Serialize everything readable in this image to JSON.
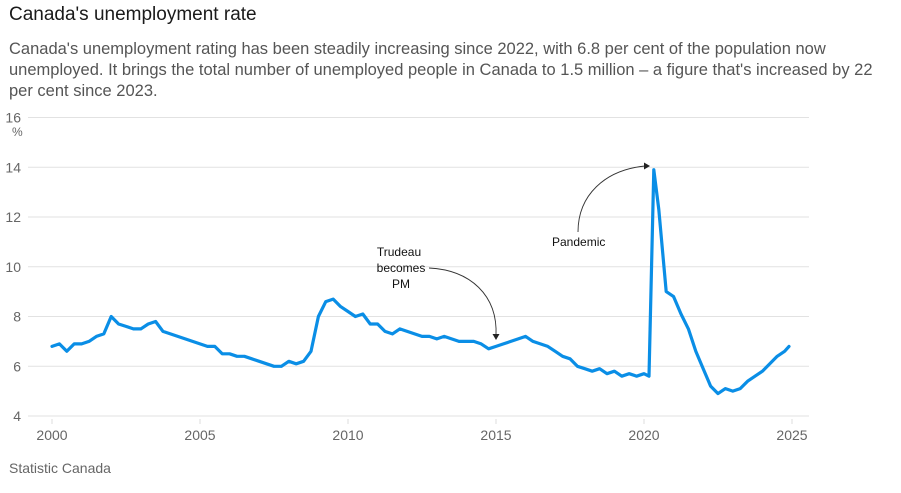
{
  "header": {
    "title": "Canada's unemployment rate",
    "subtitle": "Canada's unemployment rating has been steadily increasing since 2022, with 6.8 per cent of the population now unemployed. It brings the total number of unemployed people in Canada to 1.5 million – a figure that's increased by 22 per cent since 2023."
  },
  "footer": {
    "source": "Statistic Canada"
  },
  "colors": {
    "line": "#0a8ee6",
    "grid": "#e2e2e2",
    "annotation": "#333333"
  },
  "chart_data": {
    "type": "line",
    "title": "Canada's unemployment rate",
    "xlabel": "",
    "ylabel": "%",
    "xlim": [
      2000,
      2025
    ],
    "ylim": [
      4,
      16
    ],
    "grid": true,
    "legend": "none",
    "x_ticks": [
      "2000",
      "2005",
      "2010",
      "2015",
      "2020",
      "2025"
    ],
    "y_ticks": [
      "4",
      "6",
      "8",
      "10",
      "12",
      "14",
      "16"
    ],
    "y_unit_label": "%",
    "series": [
      {
        "name": "Unemployment rate",
        "x": [
          2000.0,
          2000.25,
          2000.5,
          2000.75,
          2001.0,
          2001.25,
          2001.5,
          2001.75,
          2002.0,
          2002.25,
          2002.5,
          2002.75,
          2003.0,
          2003.25,
          2003.5,
          2003.75,
          2004.0,
          2004.25,
          2004.5,
          2004.75,
          2005.0,
          2005.25,
          2005.5,
          2005.75,
          2006.0,
          2006.25,
          2006.5,
          2006.75,
          2007.0,
          2007.25,
          2007.5,
          2007.75,
          2008.0,
          2008.25,
          2008.5,
          2008.75,
          2009.0,
          2009.25,
          2009.5,
          2009.75,
          2010.0,
          2010.25,
          2010.5,
          2010.75,
          2011.0,
          2011.25,
          2011.5,
          2011.75,
          2012.0,
          2012.25,
          2012.5,
          2012.75,
          2013.0,
          2013.25,
          2013.5,
          2013.75,
          2014.0,
          2014.25,
          2014.5,
          2014.75,
          2015.0,
          2015.25,
          2015.5,
          2015.75,
          2016.0,
          2016.25,
          2016.5,
          2016.75,
          2017.0,
          2017.25,
          2017.5,
          2017.75,
          2018.0,
          2018.25,
          2018.5,
          2018.75,
          2019.0,
          2019.25,
          2019.5,
          2019.75,
          2020.0,
          2020.17,
          2020.33,
          2020.5,
          2020.75,
          2021.0,
          2021.25,
          2021.5,
          2021.75,
          2022.0,
          2022.25,
          2022.5,
          2022.75,
          2023.0,
          2023.25,
          2023.5,
          2023.75,
          2024.0,
          2024.25,
          2024.5,
          2024.75,
          2024.9
        ],
        "values": [
          6.8,
          6.9,
          6.6,
          6.9,
          6.9,
          7.0,
          7.2,
          7.3,
          8.0,
          7.7,
          7.6,
          7.5,
          7.5,
          7.7,
          7.8,
          7.4,
          7.3,
          7.2,
          7.1,
          7.0,
          6.9,
          6.8,
          6.8,
          6.5,
          6.5,
          6.4,
          6.4,
          6.3,
          6.2,
          6.1,
          6.0,
          6.0,
          6.2,
          6.1,
          6.2,
          6.6,
          8.0,
          8.6,
          8.7,
          8.4,
          8.2,
          8.0,
          8.1,
          7.7,
          7.7,
          7.4,
          7.3,
          7.5,
          7.4,
          7.3,
          7.2,
          7.2,
          7.1,
          7.2,
          7.1,
          7.0,
          7.0,
          7.0,
          6.9,
          6.7,
          6.8,
          6.9,
          7.0,
          7.1,
          7.2,
          7.0,
          6.9,
          6.8,
          6.6,
          6.4,
          6.3,
          6.0,
          5.9,
          5.8,
          5.9,
          5.7,
          5.8,
          5.6,
          5.7,
          5.6,
          5.7,
          5.6,
          13.9,
          12.3,
          9.0,
          8.8,
          8.1,
          7.5,
          6.6,
          5.9,
          5.2,
          4.9,
          5.1,
          5.0,
          5.1,
          5.4,
          5.6,
          5.8,
          6.1,
          6.4,
          6.6,
          6.8
        ]
      }
    ],
    "annotations": [
      {
        "text_lines": [
          "Trudeau",
          "becomes",
          "PM"
        ],
        "x": 2015.0,
        "y": 6.85
      },
      {
        "text_lines": [
          "Pandemic"
        ],
        "x": 2020.33,
        "y": 13.9
      }
    ]
  }
}
